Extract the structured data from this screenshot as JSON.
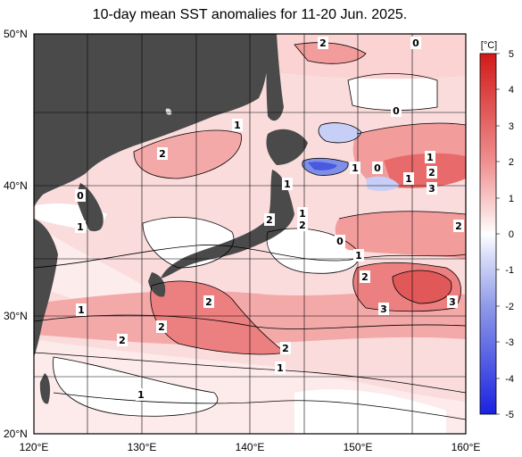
{
  "title": "10-day mean SST anomalies for 11-20 Jun. 2025.",
  "lat_labels": [
    "50°N",
    "40°N",
    "30°N",
    "20°N"
  ],
  "lon_labels": [
    "120°E",
    "130°E",
    "140°E",
    "150°E",
    "160°E"
  ],
  "colorbar": {
    "unit": "[°C]",
    "ticks": [
      "5",
      "4",
      "3",
      "2",
      "1",
      "0",
      "-1",
      "-2",
      "-3",
      "-4",
      "-5"
    ]
  },
  "contour_labels": [
    "2",
    "0",
    "0",
    "1",
    "2",
    "1",
    "0",
    "2",
    "1",
    "1",
    "3",
    "1",
    "2",
    "2",
    "0",
    "2",
    "1",
    "1",
    "2",
    "3",
    "3",
    "1",
    "2",
    "2",
    "2",
    "2",
    "1",
    "1",
    "1",
    "0"
  ],
  "colors": {
    "land": "#4a4a4a",
    "positive_light": "#f7c9c9",
    "positive_mid": "#ef8f8f",
    "positive_strong": "#e05858",
    "negative_light": "#c7cff7",
    "negative_mid": "#7f8fe8",
    "negative_strong": "#2030d8"
  }
}
